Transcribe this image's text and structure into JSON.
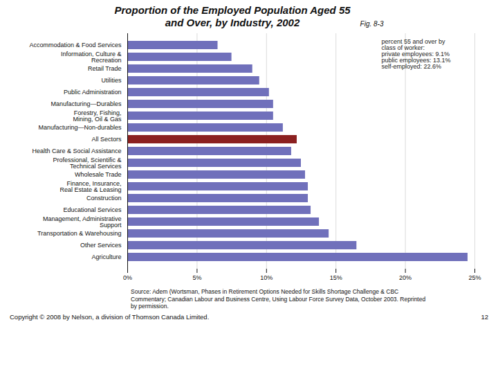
{
  "chart_data": {
    "type": "bar",
    "orientation": "horizontal",
    "title": "Proportion of the Employed Population Aged 55\nand Over, by Industry, 2002",
    "annotations": [
      "Fig. 8-3",
      "percent 55 and over by\nclass of worker:\nprivate employees: 9.1%\npublic employees: 13.1%\nself-employed: 22.6%",
      "Source: Adem (Wortsman, Phases in Retirement Options Needed for Skills Shortage Challenge & CBC\nCommentary; Canadian Labour and Business Centre, Using Labour Force Survey Data, October 2003. Reprinted\nby permission.",
      "Copyright © 2008 by Nelson, a division of Thomson Canada Limited.",
      "12"
    ],
    "categories": [
      "Accommodation & Food Services",
      "Information, Culture &\nRecreation",
      "Retail Trade",
      "Utilities",
      "Public Administration",
      "Manufacturing—Durables",
      "Forestry, Fishing,\nMining, Oil & Gas",
      "Manufacturing—Non-durables",
      "All Sectors",
      "Health Care & Social Assistance",
      "Professional, Scientific &\nTechnical Services",
      "Wholesale Trade",
      "Finance, Insurance,\nReal Estate & Leasing",
      "Construction",
      "Educational Services",
      "Management, Administrative\nSupport",
      "Transportation & Warehousing",
      "Other Services",
      "Agriculture"
    ],
    "values": [
      6.5,
      7.5,
      9.0,
      9.5,
      10.2,
      10.5,
      10.5,
      11.2,
      12.2,
      11.8,
      12.5,
      12.8,
      13.0,
      13.0,
      13.2,
      13.8,
      14.5,
      16.5,
      24.5
    ],
    "colors": [
      "#7070bb",
      "#7070bb",
      "#7070bb",
      "#7070bb",
      "#7070bb",
      "#7070bb",
      "#7070bb",
      "#7070bb",
      "#8b2020",
      "#7070bb",
      "#7070bb",
      "#7070bb",
      "#7070bb",
      "#7070bb",
      "#7070bb",
      "#7070bb",
      "#7070bb",
      "#7070bb",
      "#7070bb"
    ],
    "xlim": [
      0,
      25
    ],
    "xticks": [
      {
        "value": 0,
        "label": "0%"
      },
      {
        "value": 5,
        "label": "5%"
      },
      {
        "value": 10,
        "label": "10%"
      },
      {
        "value": 15,
        "label": "15%"
      },
      {
        "value": 20,
        "label": "20%"
      },
      {
        "value": 25,
        "label": "25%"
      }
    ],
    "grid": true
  }
}
